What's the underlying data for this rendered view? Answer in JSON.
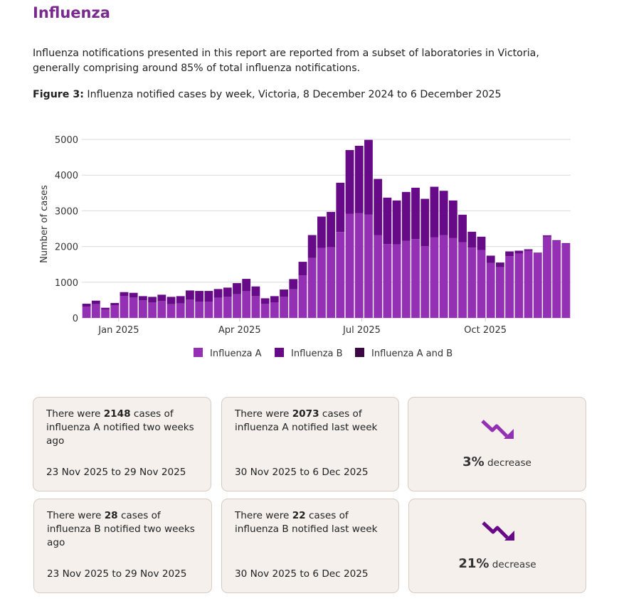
{
  "section_title": "Influenza",
  "intro": "Influenza notifications presented in this report are reported from a subset of laboratories in Victoria, generally comprising around 85% of total influenza notifications.",
  "figure": {
    "label": "Figure 3:",
    "caption": " Influenza notified cases by week, Victoria, 8 December 2024 to 6 December 2025"
  },
  "chart_data": {
    "type": "bar",
    "stacked": true,
    "title": "",
    "xlabel": "",
    "ylabel": "Number of cases",
    "ylim": [
      0,
      5000
    ],
    "yticks": [
      0,
      1000,
      2000,
      3000,
      4000,
      5000
    ],
    "xticks": [
      {
        "date": "2025-01-01",
        "label": "Jan 2025"
      },
      {
        "date": "2025-04-01",
        "label": "Apr 2025"
      },
      {
        "date": "2025-07-01",
        "label": "Jul 2025"
      },
      {
        "date": "2025-10-01",
        "label": "Oct 2025"
      }
    ],
    "grid": true,
    "legend_position": "bottom",
    "first_week_start": "2024-12-08",
    "weeks": 52,
    "series": [
      {
        "name": "Influenza A",
        "color": "#9330b3",
        "values": [
          318,
          385,
          232,
          351,
          610,
          570,
          491,
          431,
          471,
          385,
          405,
          511,
          458,
          458,
          564,
          590,
          663,
          749,
          610,
          398,
          438,
          590,
          802,
          1194,
          1678,
          1956,
          1983,
          2407,
          2918,
          2931,
          2898,
          2321,
          2069,
          2056,
          2162,
          2208,
          2009,
          2261,
          2314,
          2241,
          2122,
          1969,
          1903,
          1538,
          1419,
          1731,
          1804,
          1877,
          1817,
          2275,
          2148,
          2073
        ]
      },
      {
        "name": "Influenza B",
        "color": "#670a88",
        "values": [
          80,
          99,
          53,
          67,
          113,
          133,
          119,
          159,
          179,
          205,
          205,
          258,
          298,
          298,
          245,
          259,
          312,
          345,
          272,
          152,
          172,
          206,
          286,
          378,
          643,
          882,
          987,
          1379,
          1784,
          1890,
          2089,
          1572,
          1300,
          1233,
          1366,
          1439,
          1327,
          1413,
          1247,
          1048,
          769,
          445,
          372,
          206,
          133,
          132,
          79,
          46,
          13,
          39,
          28,
          22
        ]
      },
      {
        "name": "Influenza A and B",
        "color": "#3b0844",
        "values": [
          0,
          0,
          0,
          0,
          0,
          0,
          0,
          0,
          0,
          0,
          0,
          0,
          0,
          0,
          0,
          0,
          0,
          0,
          0,
          0,
          0,
          0,
          0,
          0,
          0,
          0,
          0,
          0,
          0,
          0,
          0,
          0,
          0,
          0,
          0,
          0,
          0,
          0,
          0,
          0,
          0,
          0,
          0,
          0,
          0,
          0,
          0,
          0,
          0,
          0,
          0,
          0
        ]
      }
    ]
  },
  "cards": [
    {
      "pre": "There were ",
      "num": "2148",
      "post": " cases of influenza A notified two weeks ago",
      "date": "23 Nov 2025 to 29 Nov 2025"
    },
    {
      "pre": "There were ",
      "num": "2073",
      "post": " cases of influenza A notified last week",
      "date": "30 Nov 2025 to 6 Dec 2025"
    },
    {
      "pct": "3%",
      "label": " decrease",
      "icon": "trend-down-icon",
      "color": "#9330b3"
    },
    {
      "pre": "There were ",
      "num": "28",
      "post": " cases of influenza B notified two weeks ago",
      "date": "23 Nov 2025 to 29 Nov 2025"
    },
    {
      "pre": "There were ",
      "num": "22",
      "post": " cases of influenza B notified last week",
      "date": "30 Nov 2025 to 6 Dec 2025"
    },
    {
      "pct": "21%",
      "label": " decrease",
      "icon": "trend-down-icon",
      "color": "#670a88"
    }
  ]
}
